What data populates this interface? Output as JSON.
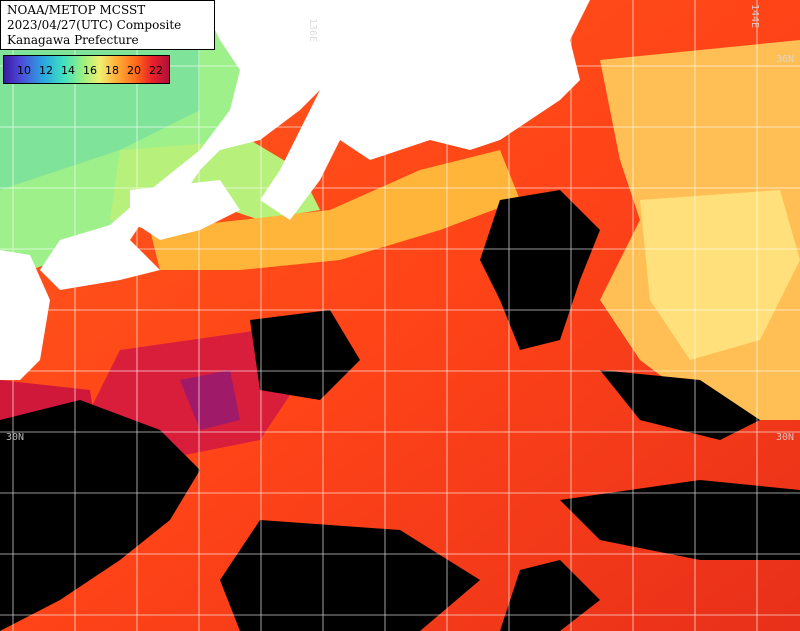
{
  "header": {
    "line1": "NOAA/METOP MCSST",
    "line2": "2023/04/27(UTC) Composite",
    "line3": "Kanagawa Prefecture"
  },
  "legend": {
    "labels": [
      "10",
      "12",
      "14",
      "16",
      "18",
      "20",
      "22"
    ]
  },
  "coords": {
    "lon_136": "136E",
    "lon_144": "144E",
    "lat_36_right": "36N",
    "lat_30_left": "30N",
    "lat_30_right": "30N"
  },
  "colors": {
    "land": "#ffffff",
    "cloud": "#000000",
    "grid": "#ffffff",
    "warm": "#ff4a1a",
    "cool": "#9ef08a"
  }
}
